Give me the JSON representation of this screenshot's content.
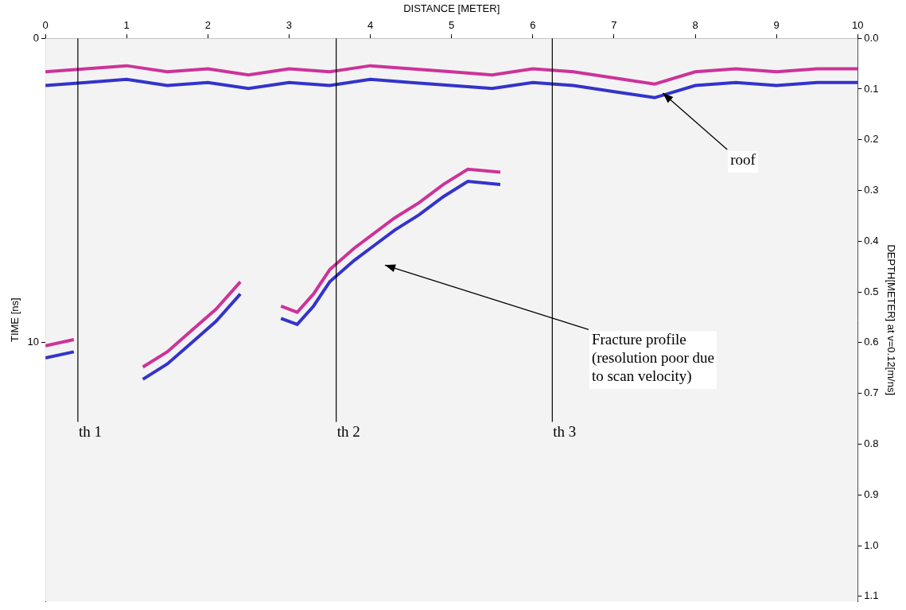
{
  "chart_data": {
    "type": "line",
    "x_label": "DISTANCE [METER]",
    "y_label": "TIME [ns]",
    "y2_label": "DEPTH[METER] at v=0.12[m/ns]",
    "xlim": [
      0,
      10
    ],
    "xticks": [
      0,
      1,
      2,
      3,
      4,
      5,
      6,
      7,
      8,
      9,
      10
    ],
    "ylim": [
      0,
      18.5
    ],
    "yticks": [
      0,
      10
    ],
    "y2lim": [
      0,
      1.11
    ],
    "y2ticks": [
      {
        "value": 0,
        "label": "0.0"
      },
      0.1,
      0.2,
      0.3,
      0.4,
      0.5,
      0.6,
      0.7,
      0.8,
      0.9,
      {
        "value": 1,
        "label": "1.0"
      },
      1.1
    ],
    "grid": false,
    "series": [
      {
        "color": "#cc3399",
        "x": [
          0,
          0.5,
          1,
          1.5,
          2,
          2.5,
          3,
          3.5,
          4,
          4.5,
          5,
          5.5,
          6,
          6.5,
          7,
          7.5,
          8,
          8.5,
          9,
          9.5,
          10
        ],
        "values": [
          1.1,
          1.0,
          0.9,
          1.1,
          1.0,
          1.2,
          1.0,
          1.1,
          0.9,
          1.0,
          1.1,
          1.2,
          1.0,
          1.1,
          1.3,
          1.5,
          1.1,
          1.0,
          1.1,
          1.0,
          1.0
        ]
      },
      {
        "color": "#3333cc",
        "x": [
          0,
          0.5,
          1,
          1.5,
          2,
          2.5,
          3,
          3.5,
          4,
          4.5,
          5,
          5.5,
          6,
          6.5,
          7,
          7.5,
          8,
          8.5,
          9,
          9.5,
          10
        ],
        "values": [
          1.55,
          1.45,
          1.35,
          1.55,
          1.45,
          1.65,
          1.45,
          1.55,
          1.35,
          1.45,
          1.55,
          1.65,
          1.45,
          1.55,
          1.75,
          1.95,
          1.55,
          1.45,
          1.55,
          1.45,
          1.45
        ]
      },
      {
        "color": "#cc3399",
        "x": [
          0,
          0.35,
          0.6,
          1.2,
          1.5,
          1.8,
          2.1,
          2.4,
          2.6,
          2.9,
          3.1,
          3.3,
          3.5,
          3.8,
          4.0,
          4.3,
          4.6,
          4.9,
          5.2,
          5.6
        ],
        "values": [
          10.1,
          9.9,
          null,
          10.8,
          10.3,
          9.6,
          8.9,
          8.0,
          null,
          8.8,
          9.0,
          8.4,
          7.6,
          6.9,
          6.5,
          5.9,
          5.4,
          4.8,
          4.3,
          4.4
        ]
      },
      {
        "color": "#3333cc",
        "x": [
          0,
          0.35,
          0.6,
          1.2,
          1.5,
          1.8,
          2.1,
          2.4,
          2.6,
          2.9,
          3.1,
          3.3,
          3.5,
          3.8,
          4.0,
          4.3,
          4.6,
          4.9,
          5.2,
          5.6
        ],
        "values": [
          10.5,
          10.3,
          null,
          11.2,
          10.7,
          10.0,
          9.3,
          8.4,
          null,
          9.2,
          9.4,
          8.8,
          8.0,
          7.3,
          6.9,
          6.3,
          5.8,
          5.2,
          4.7,
          4.8
        ]
      }
    ],
    "markers": [
      {
        "label": "th 1",
        "x": 0.4,
        "y": 12.6
      },
      {
        "label": "th 2",
        "x": 3.58,
        "y": 12.6
      },
      {
        "label": "th 3",
        "x": 6.24,
        "y": 12.6
      }
    ],
    "annotations": [
      {
        "text": "roof",
        "x": 7.6,
        "y": 1.8
      },
      {
        "text": "Fracture profile\n(resolution poor due\nto scan velocity)",
        "x": 4.18,
        "y": 7.45
      }
    ]
  }
}
